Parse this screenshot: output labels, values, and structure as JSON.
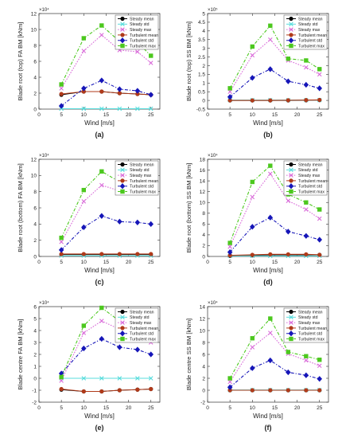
{
  "figure": {
    "layout": "3 rows x 2 columns"
  },
  "styles": {
    "Steady mean": {
      "color": "#000000",
      "marker": "circle",
      "dash": "solid"
    },
    "Steady std": {
      "color": "#57dcdc",
      "marker": "x",
      "dash": "solid"
    },
    "Steady max": {
      "color": "#d96bd9",
      "marker": "x",
      "dash": "dotted"
    },
    "Turbulent mean": {
      "color": "#b03a1a",
      "marker": "circle",
      "dash": "solid"
    },
    "Turbulent std": {
      "color": "#1616b8",
      "marker": "diamond",
      "dash": "dashdot"
    },
    "Turbulent max": {
      "color": "#4cc81e",
      "marker": "square",
      "dash": "dashdot"
    }
  },
  "chart_data": [
    {
      "type": "line",
      "label": "(a)",
      "exponent": "×10⁴",
      "xlabel": "Wind [m/s]",
      "ylabel": "Blade root (top) FA BM [kNm]",
      "xlim": [
        0,
        27
      ],
      "ylim": [
        0,
        12
      ],
      "xticks": [
        0,
        5,
        10,
        15,
        20,
        25
      ],
      "yticks": [
        0,
        2,
        4,
        6,
        8,
        10,
        12
      ],
      "legend_position": "top-right",
      "x": [
        5,
        10,
        14,
        18,
        22,
        25
      ],
      "series": [
        {
          "name": "Steady mean",
          "values": [
            1.8,
            2.2,
            2.2,
            2.0,
            1.9,
            1.8
          ]
        },
        {
          "name": "Steady std",
          "values": [
            0.05,
            0.05,
            0.05,
            0.05,
            0.05,
            0.05
          ]
        },
        {
          "name": "Steady max",
          "values": [
            2.6,
            7.3,
            9.3,
            7.4,
            7.2,
            5.8
          ]
        },
        {
          "name": "Turbulent mean",
          "values": [
            1.9,
            2.2,
            2.2,
            2.0,
            1.9,
            1.8
          ]
        },
        {
          "name": "Turbulent std",
          "values": [
            0.4,
            2.6,
            3.6,
            2.5,
            2.3,
            1.8
          ]
        },
        {
          "name": "Turbulent max",
          "values": [
            3.1,
            8.9,
            10.5,
            8.5,
            8.4,
            6.7
          ]
        }
      ]
    },
    {
      "type": "line",
      "label": "(b)",
      "exponent": "×10⁵",
      "xlabel": "Wind [m/s]",
      "ylabel": "Blade root (top) SS BM [kNm]",
      "xlim": [
        0,
        27
      ],
      "ylim": [
        -0.5,
        5
      ],
      "xticks": [
        0,
        5,
        10,
        15,
        20,
        25
      ],
      "yticks": [
        -0.5,
        0,
        0.5,
        1,
        1.5,
        2,
        2.5,
        3,
        3.5,
        4,
        4.5,
        5
      ],
      "legend_position": "top-right",
      "x": [
        5,
        10,
        14,
        18,
        22,
        25
      ],
      "series": [
        {
          "name": "Steady mean",
          "values": [
            0.0,
            0.0,
            0.0,
            0.0,
            0.01,
            0.02
          ]
        },
        {
          "name": "Steady std",
          "values": [
            0.02,
            0.02,
            0.02,
            0.02,
            0.02,
            0.02
          ]
        },
        {
          "name": "Steady max",
          "values": [
            0.5,
            2.6,
            3.5,
            2.3,
            1.9,
            1.5
          ]
        },
        {
          "name": "Turbulent mean",
          "values": [
            0.0,
            0.0,
            0.0,
            0.01,
            0.02,
            0.03
          ]
        },
        {
          "name": "Turbulent std",
          "values": [
            0.2,
            1.3,
            1.8,
            1.1,
            0.9,
            0.7
          ]
        },
        {
          "name": "Turbulent max",
          "values": [
            0.7,
            3.1,
            4.3,
            2.4,
            2.3,
            1.8
          ]
        }
      ]
    },
    {
      "type": "line",
      "label": "(c)",
      "exponent": "×10⁴",
      "xlabel": "Wind [m/s]",
      "ylabel": "Blade root (bottom) FA BM [kNm]",
      "xlim": [
        0,
        27
      ],
      "ylim": [
        0,
        12
      ],
      "xticks": [
        0,
        5,
        10,
        15,
        20,
        25
      ],
      "yticks": [
        0,
        2,
        4,
        6,
        8,
        10,
        12
      ],
      "legend_position": "top-right",
      "x": [
        5,
        10,
        14,
        18,
        22,
        25
      ],
      "series": [
        {
          "name": "Steady mean",
          "values": [
            0.25,
            0.25,
            0.25,
            0.25,
            0.25,
            0.25
          ]
        },
        {
          "name": "Steady std",
          "values": [
            0.1,
            0.1,
            0.1,
            0.1,
            0.1,
            0.1
          ]
        },
        {
          "name": "Steady max",
          "values": [
            1.8,
            6.8,
            8.8,
            8.1,
            8.5,
            8.0
          ]
        },
        {
          "name": "Turbulent mean",
          "values": [
            0.3,
            0.3,
            0.3,
            0.3,
            0.3,
            0.3
          ]
        },
        {
          "name": "Turbulent std",
          "values": [
            0.8,
            3.6,
            5.0,
            4.3,
            4.2,
            4.0
          ]
        },
        {
          "name": "Turbulent max",
          "values": [
            2.3,
            8.2,
            10.5,
            9.2,
            10.3,
            8.9
          ]
        }
      ]
    },
    {
      "type": "line",
      "label": "(d)",
      "exponent": "×10⁴",
      "xlabel": "Wind [m/s]",
      "ylabel": "Blade root (bottom) SS BM [kNm]",
      "xlim": [
        0,
        27
      ],
      "ylim": [
        0,
        18
      ],
      "xticks": [
        0,
        5,
        10,
        15,
        20,
        25
      ],
      "yticks": [
        0,
        2,
        4,
        6,
        8,
        10,
        12,
        14,
        16,
        18
      ],
      "legend_position": "top-right",
      "x": [
        5,
        10,
        14,
        18,
        22,
        25
      ],
      "series": [
        {
          "name": "Steady mean",
          "values": [
            0.1,
            0.2,
            0.3,
            0.3,
            0.3,
            0.3
          ]
        },
        {
          "name": "Steady std",
          "values": [
            0.1,
            0.1,
            0.1,
            0.1,
            0.1,
            0.1
          ]
        },
        {
          "name": "Steady max",
          "values": [
            1.8,
            11.0,
            15.3,
            10.3,
            8.7,
            7.0
          ]
        },
        {
          "name": "Turbulent mean",
          "values": [
            0.2,
            0.3,
            0.4,
            0.4,
            0.4,
            0.3
          ]
        },
        {
          "name": "Turbulent std",
          "values": [
            0.8,
            5.5,
            7.2,
            4.6,
            3.8,
            3.1
          ]
        },
        {
          "name": "Turbulent max",
          "values": [
            2.5,
            13.8,
            16.8,
            11.5,
            10.0,
            8.7
          ]
        }
      ]
    },
    {
      "type": "line",
      "label": "(e)",
      "exponent": "×10⁴",
      "xlabel": "Wind [m/s]",
      "ylabel": "Blade centre FA BM [kNm]",
      "xlim": [
        0,
        27
      ],
      "ylim": [
        -2,
        6
      ],
      "xticks": [
        0,
        5,
        10,
        15,
        20,
        25
      ],
      "yticks": [
        -2,
        -1,
        0,
        1,
        2,
        3,
        4,
        5,
        6
      ],
      "legend_position": "top-right",
      "x": [
        5,
        10,
        14,
        18,
        22,
        25
      ],
      "series": [
        {
          "name": "Steady mean",
          "values": [
            -0.95,
            -1.1,
            -1.1,
            -1.0,
            -0.95,
            -0.9
          ]
        },
        {
          "name": "Steady std",
          "values": [
            0.0,
            0.0,
            0.0,
            0.0,
            0.0,
            0.0
          ]
        },
        {
          "name": "Steady max",
          "values": [
            -0.2,
            3.8,
            4.8,
            4.1,
            4.0,
            3.0
          ]
        },
        {
          "name": "Turbulent mean",
          "values": [
            -0.9,
            -1.1,
            -1.1,
            -1.0,
            -0.95,
            -0.9
          ]
        },
        {
          "name": "Turbulent std",
          "values": [
            0.4,
            2.5,
            3.3,
            2.6,
            2.4,
            2.0
          ]
        },
        {
          "name": "Turbulent max",
          "values": [
            0.1,
            4.4,
            5.9,
            4.8,
            5.2,
            4.1
          ]
        }
      ]
    },
    {
      "type": "line",
      "label": "(f)",
      "exponent": "×10⁴",
      "xlabel": "Wind [m/s]",
      "ylabel": "Blade centre SS BM [kNm]",
      "xlim": [
        0,
        27
      ],
      "ylim": [
        -2,
        14
      ],
      "xticks": [
        0,
        5,
        10,
        15,
        20,
        25
      ],
      "yticks": [
        -2,
        0,
        2,
        4,
        6,
        8,
        10,
        12,
        14
      ],
      "legend_position": "top-right",
      "x": [
        5,
        10,
        14,
        18,
        22,
        25
      ],
      "series": [
        {
          "name": "Steady mean",
          "values": [
            0.0,
            0.0,
            0.0,
            0.0,
            0.0,
            0.0
          ]
        },
        {
          "name": "Steady std",
          "values": [
            0.05,
            0.05,
            0.05,
            0.05,
            0.05,
            0.05
          ]
        },
        {
          "name": "Steady max",
          "values": [
            1.4,
            7.2,
            9.6,
            6.1,
            5.0,
            4.1
          ]
        },
        {
          "name": "Turbulent mean",
          "values": [
            0.0,
            0.0,
            0.0,
            0.0,
            0.0,
            0.0
          ]
        },
        {
          "name": "Turbulent std",
          "values": [
            0.5,
            3.7,
            5.0,
            3.0,
            2.5,
            1.9
          ]
        },
        {
          "name": "Turbulent max",
          "values": [
            2.0,
            8.7,
            12.0,
            6.4,
            5.7,
            5.1
          ]
        }
      ]
    }
  ]
}
